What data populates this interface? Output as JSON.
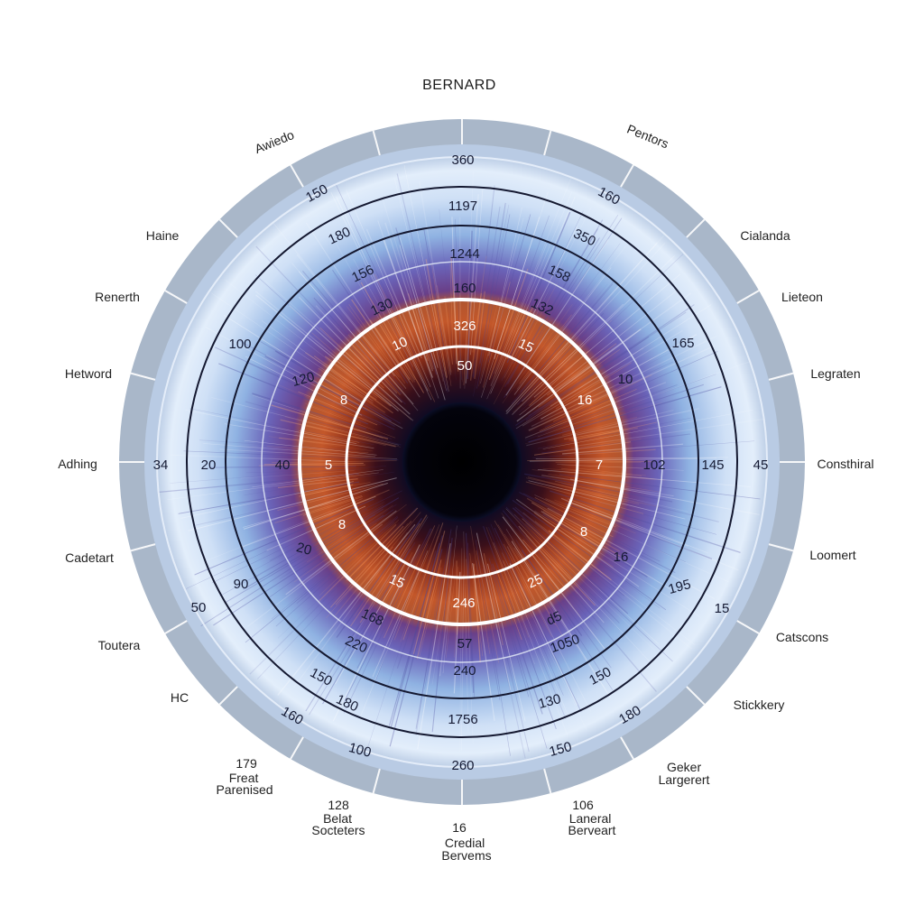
{
  "title": "BERNARD",
  "colors": {
    "bezel": "#a9b7c9",
    "iris_light": "#e3eefb",
    "iris_mid": "#8fb2e2",
    "iris_violet": "#6a63b8",
    "collarette": "#c3572a",
    "pupil": "#050510",
    "ring_line": "#141830",
    "white_ring": "#ffffff"
  },
  "outer_labels": [
    {
      "id": "awiedo",
      "lines": [
        "Awiedo"
      ]
    },
    {
      "id": "pentors",
      "lines": [
        "Pentors"
      ]
    },
    {
      "id": "haine",
      "lines": [
        "Haine"
      ]
    },
    {
      "id": "cialanda",
      "lines": [
        "Cialanda"
      ]
    },
    {
      "id": "renerth",
      "lines": [
        "Renerth"
      ]
    },
    {
      "id": "lieteon",
      "lines": [
        "Lieteon"
      ]
    },
    {
      "id": "hetword",
      "lines": [
        "Hetword"
      ]
    },
    {
      "id": "legraten",
      "lines": [
        "Legraten"
      ]
    },
    {
      "id": "adhing",
      "lines": [
        "Adhing"
      ]
    },
    {
      "id": "consthiral",
      "lines": [
        "Consthiral"
      ]
    },
    {
      "id": "cadetart",
      "lines": [
        "Cadetart"
      ]
    },
    {
      "id": "loomert",
      "lines": [
        "Loomert"
      ]
    },
    {
      "id": "toutera",
      "lines": [
        "Toutera"
      ]
    },
    {
      "id": "catscons",
      "lines": [
        "Catscons"
      ]
    },
    {
      "id": "hc",
      "lines": [
        "HC"
      ]
    },
    {
      "id": "stickkery",
      "lines": [
        "Stickkery"
      ]
    },
    {
      "id": "freat-parenised",
      "lines": [
        "179",
        "Freat",
        "Parenised"
      ]
    },
    {
      "id": "geker-largerert",
      "lines": [
        "Geker",
        "Largerert"
      ]
    },
    {
      "id": "belat-socteters",
      "lines": [
        "128",
        "Belat",
        "Socteters"
      ]
    },
    {
      "id": "laneral-berveart",
      "lines": [
        "106",
        "Laneral",
        "Berveart"
      ]
    },
    {
      "id": "credial-bervems",
      "lines": [
        "16",
        "Credial",
        "Bervems"
      ]
    }
  ],
  "ring_numbers": [
    {
      "id": "top-360",
      "text": "360"
    },
    {
      "id": "top-1197",
      "text": "1197"
    },
    {
      "id": "top-1244",
      "text": "1244"
    },
    {
      "id": "top-160",
      "text": "160"
    },
    {
      "id": "top-326",
      "text": "326"
    },
    {
      "id": "top-50",
      "text": "50"
    },
    {
      "id": "ul-150",
      "text": "150"
    },
    {
      "id": "ul-180",
      "text": "180"
    },
    {
      "id": "ul-156",
      "text": "156"
    },
    {
      "id": "ul-130",
      "text": "130"
    },
    {
      "id": "ul-10",
      "text": "10"
    },
    {
      "id": "ur-160",
      "text": "160"
    },
    {
      "id": "ur-350",
      "text": "350"
    },
    {
      "id": "ur-158",
      "text": "158"
    },
    {
      "id": "ur-132",
      "text": "132"
    },
    {
      "id": "ur-15",
      "text": "15"
    },
    {
      "id": "l-100",
      "text": "100"
    },
    {
      "id": "l-120",
      "text": "120"
    },
    {
      "id": "l-8",
      "text": "8"
    },
    {
      "id": "r-165",
      "text": "165"
    },
    {
      "id": "r-10",
      "text": "10"
    },
    {
      "id": "r-16",
      "text": "16"
    },
    {
      "id": "mid-34",
      "text": "34"
    },
    {
      "id": "mid-20",
      "text": "20"
    },
    {
      "id": "mid-40",
      "text": "40"
    },
    {
      "id": "mid-5",
      "text": "5"
    },
    {
      "id": "mid-7",
      "text": "7"
    },
    {
      "id": "mid-102",
      "text": "102"
    },
    {
      "id": "mid-145",
      "text": "145"
    },
    {
      "id": "mid-45",
      "text": "45"
    },
    {
      "id": "ll-8",
      "text": "8"
    },
    {
      "id": "ll-20",
      "text": "20"
    },
    {
      "id": "ll-90",
      "text": "90"
    },
    {
      "id": "ll-50",
      "text": "50"
    },
    {
      "id": "ll-15",
      "text": "15"
    },
    {
      "id": "ll-168",
      "text": "168"
    },
    {
      "id": "ll-220",
      "text": "220"
    },
    {
      "id": "ll-150",
      "text": "150"
    },
    {
      "id": "ll-180",
      "text": "180"
    },
    {
      "id": "ll-160",
      "text": "160"
    },
    {
      "id": "ll-100",
      "text": "100"
    },
    {
      "id": "lr-8",
      "text": "8"
    },
    {
      "id": "lr-16",
      "text": "16"
    },
    {
      "id": "lr-195",
      "text": "195"
    },
    {
      "id": "lr-15",
      "text": "15"
    },
    {
      "id": "lr-25",
      "text": "25"
    },
    {
      "id": "lr-d5",
      "text": "d5"
    },
    {
      "id": "lr-1050",
      "text": "1050"
    },
    {
      "id": "lr-150",
      "text": "150"
    },
    {
      "id": "lr-130",
      "text": "130"
    },
    {
      "id": "lr-180",
      "text": "180"
    },
    {
      "id": "lr-150b",
      "text": "150"
    },
    {
      "id": "bot-246",
      "text": "246"
    },
    {
      "id": "bot-57",
      "text": "57"
    },
    {
      "id": "bot-240",
      "text": "240"
    },
    {
      "id": "bot-1756",
      "text": "1756"
    },
    {
      "id": "bot-260",
      "text": "260"
    }
  ]
}
